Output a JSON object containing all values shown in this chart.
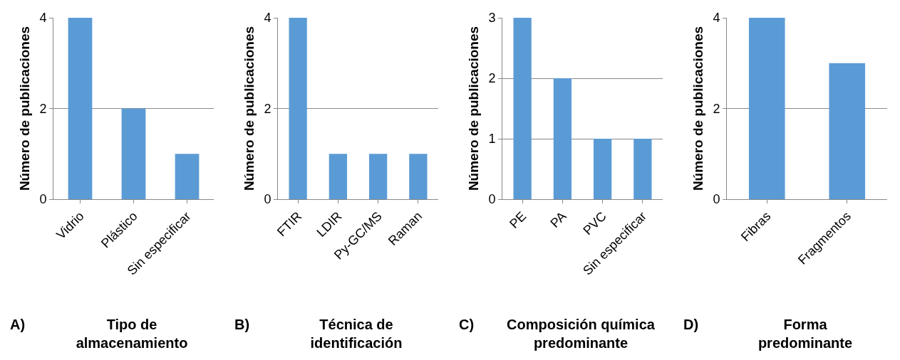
{
  "chart_data": [
    {
      "type": "bar",
      "title": "Tipo de\nalmacenamiento",
      "ylabel": "Número de publicaciones",
      "annotations": [
        "A)"
      ],
      "categories": [
        "Vidrio",
        "Plástico",
        "Sin especificar"
      ],
      "values": [
        4,
        2,
        1
      ],
      "color": "#5b9bd5",
      "ylim": [
        0,
        4
      ],
      "yticks": [
        0,
        2,
        4
      ],
      "grid": "y"
    },
    {
      "type": "bar",
      "title": "Técnica de\nidentificación",
      "ylabel": "Número de publicaciones",
      "annotations": [
        "B)"
      ],
      "categories": [
        "FTIR",
        "LDIR",
        "Py-GC/MS",
        "Raman"
      ],
      "values": [
        4,
        1,
        1,
        1
      ],
      "color": "#5b9bd5",
      "ylim": [
        0,
        4
      ],
      "yticks": [
        0,
        2,
        4
      ],
      "grid": "y"
    },
    {
      "type": "bar",
      "title": "Composición química\npredominante",
      "ylabel": "Número de publicaciones",
      "annotations": [
        "C)"
      ],
      "categories": [
        "PE",
        "PA",
        "PVC",
        "Sin especificar"
      ],
      "values": [
        3,
        2,
        1,
        1
      ],
      "color": "#5b9bd5",
      "ylim": [
        0,
        3
      ],
      "yticks": [
        0,
        1,
        2,
        3
      ],
      "grid": "y"
    },
    {
      "type": "bar",
      "title": "Forma\npredominante",
      "ylabel": "Número de publicaciones",
      "annotations": [
        "D)"
      ],
      "categories": [
        "Fibras",
        "Fragmentos"
      ],
      "values": [
        4,
        3
      ],
      "color": "#5b9bd5",
      "ylim": [
        0,
        4
      ],
      "yticks": [
        0,
        2,
        4
      ],
      "grid": "y"
    }
  ]
}
